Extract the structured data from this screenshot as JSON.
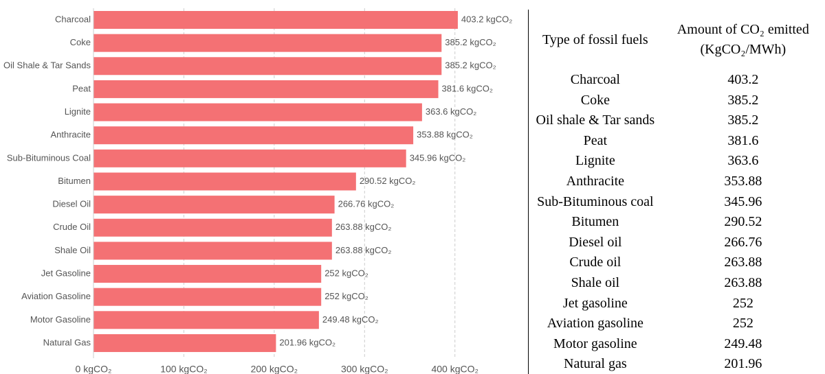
{
  "chart_data": {
    "type": "bar",
    "orientation": "horizontal",
    "categories": [
      "Charcoal",
      "Coke",
      "Oil Shale & Tar Sands",
      "Peat",
      "Lignite",
      "Anthracite",
      "Sub-Bituminous Coal",
      "Bitumen",
      "Diesel Oil",
      "Crude Oil",
      "Shale Oil",
      "Jet Gasoline",
      "Aviation Gasoline",
      "Motor Gasoline",
      "Natural Gas"
    ],
    "values": [
      403.2,
      385.2,
      385.2,
      381.6,
      363.6,
      353.88,
      345.96,
      290.52,
      266.76,
      263.88,
      263.88,
      252,
      252,
      249.48,
      201.96
    ],
    "value_labels": [
      "403.2 kgCO₂",
      "385.2 kgCO₂",
      "385.2 kgCO₂",
      "381.6 kgCO₂",
      "363.6 kgCO₂",
      "353.88 kgCO₂",
      "345.96 kgCO₂",
      "290.52 kgCO₂",
      "266.76 kgCO₂",
      "263.88 kgCO₂",
      "263.88 kgCO₂",
      "252 kgCO₂",
      "252 kgCO₂",
      "249.48 kgCO₂",
      "201.96 kgCO₂"
    ],
    "color": "#f47174",
    "xlim": [
      0,
      420
    ],
    "xticks": [
      {
        "value": 0,
        "label": "0 kgCO₂"
      },
      {
        "value": 100,
        "label": "100 kgCO₂"
      },
      {
        "value": 200,
        "label": "200 kgCO₂"
      },
      {
        "value": 300,
        "label": "300 kgCO₂"
      },
      {
        "value": 400,
        "label": "400 kgCO₂"
      }
    ],
    "grid": true
  },
  "table": {
    "header": [
      "Type of fossil fuels",
      "Amount of CO₂ emitted (KgCO₂/MWh)"
    ],
    "rows": [
      [
        "Charcoal",
        "403.2"
      ],
      [
        "Coke",
        "385.2"
      ],
      [
        "Oil shale & Tar sands",
        "385.2"
      ],
      [
        "Peat",
        "381.6"
      ],
      [
        "Lignite",
        "363.6"
      ],
      [
        "Anthracite",
        "353.88"
      ],
      [
        "Sub-Bituminous coal",
        "345.96"
      ],
      [
        "Bitumen",
        "290.52"
      ],
      [
        "Diesel oil",
        "266.76"
      ],
      [
        "Crude oil",
        "263.88"
      ],
      [
        "Shale oil",
        "263.88"
      ],
      [
        "Jet gasoline",
        "252"
      ],
      [
        "Aviation gasoline",
        "252"
      ],
      [
        "Motor gasoline",
        "249.48"
      ],
      [
        "Natural gas",
        "201.96"
      ]
    ]
  }
}
